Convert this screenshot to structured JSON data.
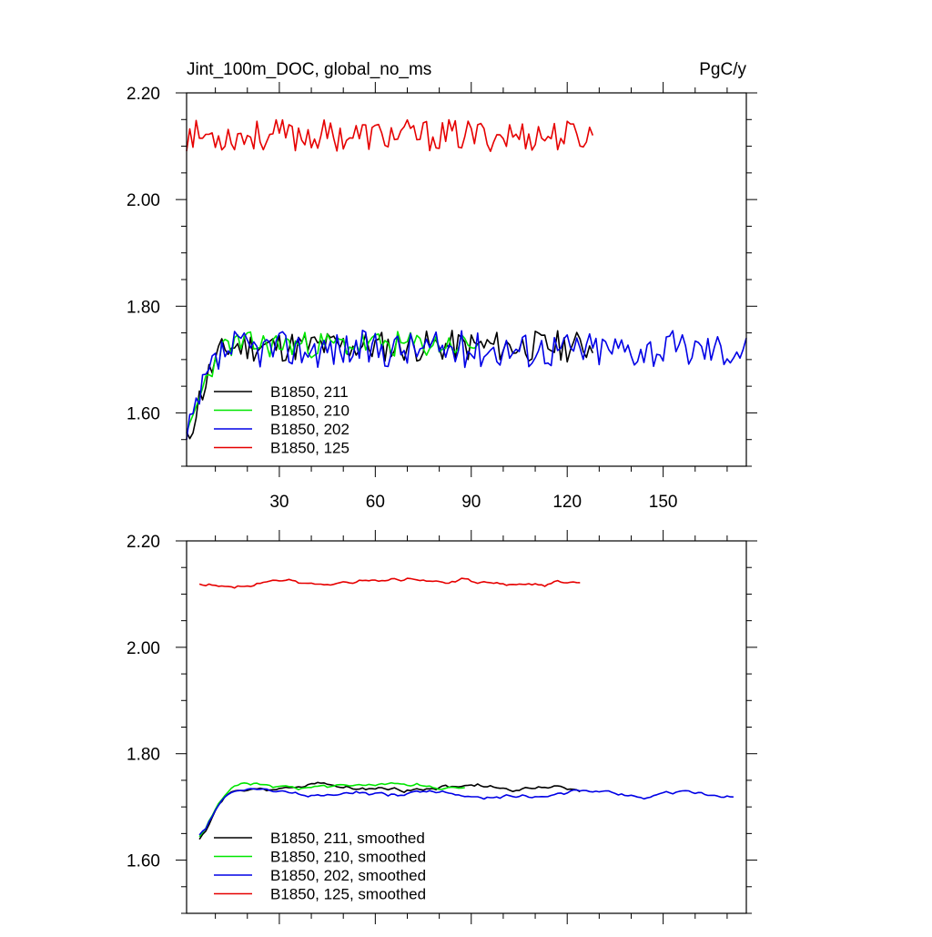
{
  "chart_data": [
    {
      "type": "line",
      "title": "Jint_100m_DOC, global_no_ms",
      "units": "PgC/y",
      "xlim": [
        1,
        176
      ],
      "ylim": [
        1.5,
        2.2
      ],
      "yticks": [
        1.6,
        1.8,
        2.0,
        2.2
      ],
      "ytick_labels": [
        "1.60",
        "1.80",
        "2.00",
        "2.20"
      ],
      "xticks": [
        30,
        60,
        90,
        120,
        150
      ],
      "xtick_labels": [
        "30",
        "60",
        "90",
        "120",
        "150"
      ],
      "series": [
        {
          "name": "B1850, 211",
          "color": "#000000",
          "x_start": 1,
          "x_end": 128,
          "base": 1.725,
          "amp": 0.03,
          "spinup": true,
          "seed": 11
        },
        {
          "name": "B1850, 210",
          "color": "#00e600",
          "x_start": 1,
          "x_end": 92,
          "base": 1.728,
          "amp": 0.025,
          "spinup": true,
          "seed": 23
        },
        {
          "name": "B1850, 202",
          "color": "#0000e6",
          "x_start": 1,
          "x_end": 176,
          "base": 1.72,
          "amp": 0.035,
          "spinup": true,
          "seed": 37
        },
        {
          "name": "B1850, 125",
          "color": "#e60000",
          "x_start": 1,
          "x_end": 128,
          "base": 2.12,
          "amp": 0.03,
          "spinup": false,
          "seed": 53
        }
      ]
    },
    {
      "type": "line",
      "title": "",
      "units": "",
      "xlim": [
        1,
        176
      ],
      "ylim": [
        1.5,
        2.2
      ],
      "yticks": [
        1.6,
        1.8,
        2.0,
        2.2
      ],
      "ytick_labels": [
        "1.60",
        "1.80",
        "2.00",
        "2.20"
      ],
      "xticks": [
        30,
        60,
        90,
        120,
        150
      ],
      "xtick_labels": [],
      "series": [
        {
          "name": "B1850, 211, smoothed",
          "color": "#000000",
          "x_start": 5,
          "x_end": 124,
          "base": 1.735,
          "amp": 0.01,
          "spinup": true,
          "seed": 11
        },
        {
          "name": "B1850, 210, smoothed",
          "color": "#00e600",
          "x_start": 5,
          "x_end": 88,
          "base": 1.738,
          "amp": 0.008,
          "spinup": true,
          "seed": 23
        },
        {
          "name": "B1850, 202, smoothed",
          "color": "#0000e6",
          "x_start": 5,
          "x_end": 172,
          "base": 1.725,
          "amp": 0.01,
          "spinup": true,
          "seed": 37
        },
        {
          "name": "B1850, 125, smoothed",
          "color": "#e60000",
          "x_start": 5,
          "x_end": 124,
          "base": 2.122,
          "amp": 0.015,
          "spinup": false,
          "seed": 53
        }
      ]
    }
  ]
}
